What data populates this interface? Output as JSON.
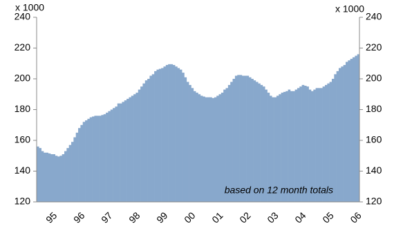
{
  "chart_data": {
    "type": "bar",
    "y_label": "x 1000",
    "y2_label": "x 1000",
    "annotation": "based on 12 month totals",
    "categories": [
      null,
      null,
      null,
      null,
      null,
      null,
      "95",
      null,
      null,
      null,
      null,
      null,
      null,
      null,
      null,
      null,
      null,
      null,
      "96",
      null,
      null,
      null,
      null,
      null,
      null,
      null,
      null,
      null,
      null,
      null,
      "97",
      null,
      null,
      null,
      null,
      null,
      null,
      null,
      null,
      null,
      null,
      null,
      "98",
      null,
      null,
      null,
      null,
      null,
      null,
      null,
      null,
      null,
      null,
      null,
      "99",
      null,
      null,
      null,
      null,
      null,
      null,
      null,
      null,
      null,
      null,
      null,
      "00",
      null,
      null,
      null,
      null,
      null,
      null,
      null,
      null,
      null,
      null,
      null,
      "01",
      null,
      null,
      null,
      null,
      null,
      null,
      null,
      null,
      null,
      null,
      null,
      "02",
      null,
      null,
      null,
      null,
      null,
      null,
      null,
      null,
      null,
      null,
      null,
      "03",
      null,
      null,
      null,
      null,
      null,
      null,
      null,
      null,
      null,
      null,
      null,
      "04",
      null,
      null,
      null,
      null,
      null,
      null,
      null,
      null,
      null,
      null,
      null,
      "05",
      null,
      null,
      null,
      null,
      null,
      null,
      null,
      null,
      null,
      null,
      null,
      "06",
      null
    ],
    "values": [
      156,
      155,
      153,
      152,
      152,
      151.5,
      151,
      151,
      150,
      149.5,
      150,
      151,
      153,
      155,
      157,
      159,
      162,
      165,
      168,
      170,
      172,
      173,
      174,
      175,
      175.5,
      176,
      176,
      176,
      176.5,
      177,
      178,
      179,
      180,
      181,
      182,
      184,
      184,
      185,
      186,
      187,
      188,
      189,
      190,
      191,
      193,
      195,
      197,
      199,
      200,
      202,
      203,
      205,
      206,
      206.5,
      207,
      208,
      209,
      209.5,
      209.5,
      209,
      208,
      207,
      206,
      204,
      201,
      198,
      196,
      194,
      192,
      191,
      190,
      189,
      188.5,
      188,
      188,
      188,
      187.5,
      188,
      189,
      190,
      191,
      193,
      194,
      196,
      198,
      200,
      202,
      202.5,
      202.5,
      202,
      202,
      202,
      201,
      200,
      199,
      198,
      197,
      196,
      195,
      193,
      191,
      189,
      188,
      188,
      189,
      190,
      191,
      191.5,
      192,
      193,
      192,
      192,
      193,
      194,
      195,
      196,
      195.5,
      195,
      193,
      192,
      193,
      194,
      194,
      194,
      195,
      196,
      197,
      198,
      200,
      203,
      205,
      207,
      208,
      209,
      211,
      212,
      213,
      214,
      215,
      216
    ],
    "color": "#88a8cc",
    "ylim": [
      120,
      240
    ],
    "yticks": [
      120,
      140,
      160,
      180,
      200,
      220,
      240
    ],
    "y2lim": [
      120,
      240
    ],
    "y2ticks": [
      120,
      140,
      160,
      180,
      200,
      220,
      240
    ]
  }
}
